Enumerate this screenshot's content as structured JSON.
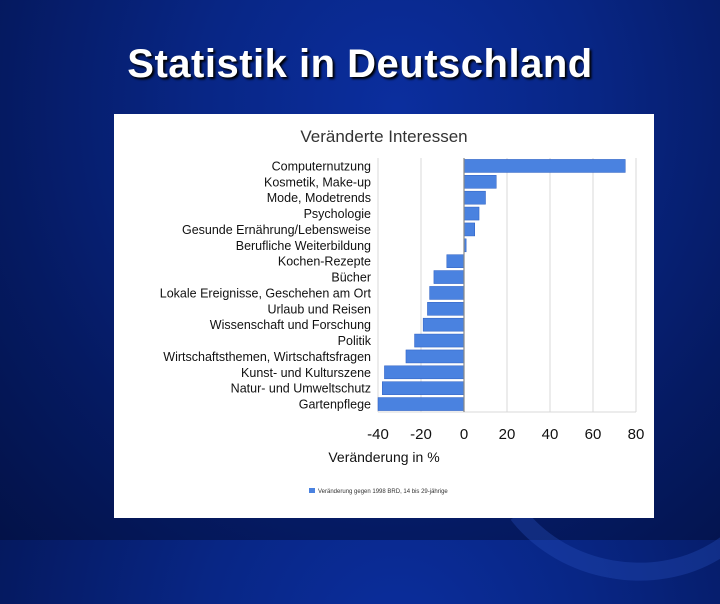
{
  "slide": {
    "title": "Statistik in Deutschland"
  },
  "colors": {
    "bar": "#4a82e0",
    "bar_dark": "#2a5cc0",
    "grid": "#d8d8d8",
    "axis": "#888888"
  },
  "chart_data": {
    "type": "bar",
    "orientation": "horizontal",
    "title": "Veränderte Interessen",
    "xlabel": "Veränderung in %",
    "ylabel": "",
    "xlim": [
      -40,
      80
    ],
    "xticks": [
      -40,
      -20,
      0,
      20,
      40,
      60,
      80
    ],
    "grid": true,
    "legend_position": "bottom",
    "categories": [
      "Computernutzung",
      "Kosmetik, Make-up",
      "Mode, Modetrends",
      "Psychologie",
      "Gesunde Ernährung/Lebensweise",
      "Berufliche Weiterbildung",
      "Kochen-Rezepte",
      "Bücher",
      "Lokale Ereignisse, Geschehen am Ort",
      "Urlaub und Reisen",
      "Wissenschaft und Forschung",
      "Politik",
      "Wirtschaftsthemen, Wirtschaftsfragen",
      "Kunst- und Kulturszene",
      "Natur- und Umweltschutz",
      "Gartenpflege"
    ],
    "series": [
      {
        "name": "Veränderung gegen 1998 BRD, 14 bis 29-jährige",
        "values": [
          75,
          15,
          10,
          7,
          5,
          1,
          -8,
          -14,
          -16,
          -17,
          -19,
          -23,
          -27,
          -37,
          -38,
          -40
        ]
      }
    ]
  }
}
